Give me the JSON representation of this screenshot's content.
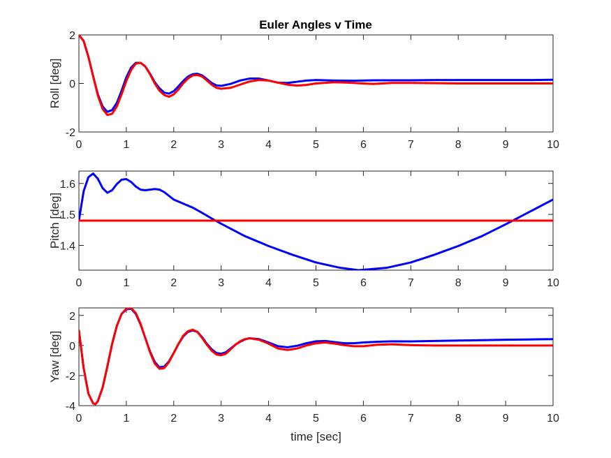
{
  "figure": {
    "title": "Euler Angles v Time"
  },
  "colors": {
    "series_blue": "#0000FF",
    "series_red": "#FF0000",
    "axes": "#262626"
  },
  "chart_data": [
    {
      "type": "line",
      "id": "roll",
      "title": "Euler Angles v Time",
      "xlabel": "",
      "ylabel": "Roll [deg]",
      "xlim": [
        0,
        10
      ],
      "ylim": [
        -2,
        2
      ],
      "xticks": [
        0,
        1,
        2,
        3,
        4,
        5,
        6,
        7,
        8,
        9,
        10
      ],
      "yticks": [
        -2,
        0,
        2
      ],
      "grid": false,
      "series": [
        {
          "color": "#0000FF",
          "x": [
            0,
            0.1,
            0.2,
            0.3,
            0.4,
            0.5,
            0.6,
            0.7,
            0.8,
            0.9,
            1.0,
            1.1,
            1.2,
            1.3,
            1.4,
            1.5,
            1.6,
            1.7,
            1.8,
            1.9,
            2.0,
            2.1,
            2.2,
            2.3,
            2.4,
            2.5,
            2.6,
            2.7,
            2.8,
            2.9,
            3.0,
            3.2,
            3.4,
            3.6,
            3.8,
            4.0,
            4.2,
            4.4,
            4.6,
            4.8,
            5.0,
            5.4,
            5.8,
            6.2,
            6.6,
            7.0,
            7.5,
            8.0,
            8.5,
            9.0,
            9.5,
            10.0
          ],
          "y": [
            2.0,
            1.75,
            1.1,
            0.3,
            -0.45,
            -0.95,
            -1.17,
            -1.1,
            -0.8,
            -0.3,
            0.25,
            0.65,
            0.85,
            0.85,
            0.7,
            0.4,
            0.05,
            -0.2,
            -0.38,
            -0.42,
            -0.32,
            -0.12,
            0.1,
            0.28,
            0.38,
            0.4,
            0.33,
            0.18,
            0.02,
            -0.08,
            -0.1,
            -0.02,
            0.12,
            0.2,
            0.2,
            0.12,
            0.03,
            0.02,
            0.07,
            0.12,
            0.14,
            0.12,
            0.11,
            0.13,
            0.13,
            0.13,
            0.14,
            0.14,
            0.14,
            0.14,
            0.14,
            0.15
          ]
        },
        {
          "color": "#FF0000",
          "x": [
            0,
            0.1,
            0.2,
            0.3,
            0.4,
            0.5,
            0.6,
            0.7,
            0.8,
            0.9,
            1.0,
            1.1,
            1.2,
            1.3,
            1.4,
            1.5,
            1.6,
            1.7,
            1.8,
            1.9,
            2.0,
            2.1,
            2.2,
            2.3,
            2.4,
            2.5,
            2.6,
            2.7,
            2.8,
            2.9,
            3.0,
            3.2,
            3.4,
            3.6,
            3.8,
            4.0,
            4.2,
            4.4,
            4.6,
            4.8,
            5.0,
            5.4,
            5.8,
            6.2,
            6.6,
            7.0,
            7.5,
            8.0,
            8.5,
            9.0,
            9.5,
            10.0
          ],
          "y": [
            2.0,
            1.75,
            1.1,
            0.3,
            -0.5,
            -1.05,
            -1.3,
            -1.25,
            -0.95,
            -0.45,
            0.1,
            0.55,
            0.82,
            0.85,
            0.7,
            0.38,
            0.0,
            -0.3,
            -0.48,
            -0.55,
            -0.45,
            -0.25,
            0.0,
            0.2,
            0.33,
            0.35,
            0.28,
            0.12,
            -0.05,
            -0.18,
            -0.22,
            -0.18,
            -0.05,
            0.08,
            0.14,
            0.12,
            0.03,
            -0.05,
            -0.09,
            -0.06,
            0.0,
            0.05,
            0.02,
            -0.02,
            0.02,
            0.02,
            0.01,
            0.0,
            0.0,
            0.0,
            0.0,
            0.0
          ]
        }
      ]
    },
    {
      "type": "line",
      "id": "pitch",
      "xlabel": "",
      "ylabel": "Pitch [deg]",
      "xlim": [
        0,
        10
      ],
      "ylim": [
        1.32,
        1.64
      ],
      "xticks": [
        0,
        1,
        2,
        3,
        4,
        5,
        6,
        7,
        8,
        9,
        10
      ],
      "yticks": [
        1.4,
        1.5,
        1.6
      ],
      "grid": false,
      "series": [
        {
          "color": "#0000FF",
          "x": [
            0,
            0.1,
            0.2,
            0.3,
            0.4,
            0.5,
            0.6,
            0.7,
            0.8,
            0.9,
            1.0,
            1.1,
            1.2,
            1.3,
            1.4,
            1.5,
            1.6,
            1.7,
            1.8,
            1.9,
            2.0,
            2.2,
            2.4,
            2.6,
            2.8,
            3.0,
            3.5,
            4.0,
            4.5,
            5.0,
            5.5,
            5.9,
            6.5,
            7.0,
            7.5,
            8.0,
            8.5,
            9.0,
            9.5,
            10.0
          ],
          "y": [
            1.48,
            1.575,
            1.62,
            1.632,
            1.615,
            1.585,
            1.57,
            1.578,
            1.598,
            1.612,
            1.614,
            1.605,
            1.59,
            1.58,
            1.578,
            1.58,
            1.582,
            1.58,
            1.572,
            1.56,
            1.548,
            1.535,
            1.522,
            1.505,
            1.487,
            1.47,
            1.43,
            1.398,
            1.37,
            1.345,
            1.328,
            1.32,
            1.328,
            1.345,
            1.37,
            1.398,
            1.43,
            1.468,
            1.508,
            1.548
          ]
        },
        {
          "color": "#FF0000",
          "x": [
            0,
            10
          ],
          "y": [
            1.48,
            1.48
          ]
        }
      ]
    },
    {
      "type": "line",
      "id": "yaw",
      "xlabel": "time [sec]",
      "ylabel": "Yaw [deg]",
      "xlim": [
        0,
        10
      ],
      "ylim": [
        -4,
        2.5
      ],
      "xticks": [
        0,
        1,
        2,
        3,
        4,
        5,
        6,
        7,
        8,
        9,
        10
      ],
      "yticks": [
        -4,
        -2,
        0,
        2
      ],
      "grid": false,
      "series": [
        {
          "color": "#0000FF",
          "x": [
            0,
            0.1,
            0.2,
            0.3,
            0.35,
            0.4,
            0.5,
            0.6,
            0.7,
            0.8,
            0.9,
            1.0,
            1.1,
            1.2,
            1.3,
            1.4,
            1.5,
            1.6,
            1.7,
            1.8,
            1.9,
            2.0,
            2.1,
            2.2,
            2.3,
            2.4,
            2.5,
            2.6,
            2.7,
            2.8,
            2.9,
            3.0,
            3.1,
            3.2,
            3.3,
            3.4,
            3.5,
            3.6,
            3.8,
            4.0,
            4.2,
            4.4,
            4.6,
            4.8,
            5.0,
            5.2,
            5.4,
            5.6,
            5.8,
            6.0,
            6.3,
            6.6,
            7.0,
            7.5,
            8.0,
            8.5,
            9.0,
            9.5,
            10.0
          ],
          "y": [
            1.0,
            -1.5,
            -3.2,
            -3.85,
            -3.9,
            -3.7,
            -2.8,
            -1.4,
            0.1,
            1.3,
            2.1,
            2.4,
            2.45,
            2.1,
            1.4,
            0.5,
            -0.4,
            -1.1,
            -1.45,
            -1.4,
            -1.05,
            -0.5,
            0.1,
            0.6,
            0.9,
            1.0,
            0.9,
            0.55,
            0.1,
            -0.25,
            -0.5,
            -0.55,
            -0.45,
            -0.2,
            0.05,
            0.25,
            0.4,
            0.48,
            0.42,
            0.2,
            -0.05,
            -0.12,
            -0.02,
            0.15,
            0.28,
            0.3,
            0.22,
            0.15,
            0.15,
            0.2,
            0.25,
            0.28,
            0.27,
            0.3,
            0.33,
            0.35,
            0.38,
            0.4,
            0.42
          ]
        },
        {
          "color": "#FF0000",
          "x": [
            0,
            0.1,
            0.2,
            0.3,
            0.35,
            0.4,
            0.5,
            0.6,
            0.7,
            0.8,
            0.9,
            1.0,
            1.1,
            1.2,
            1.3,
            1.4,
            1.5,
            1.6,
            1.7,
            1.8,
            1.9,
            2.0,
            2.1,
            2.2,
            2.3,
            2.4,
            2.5,
            2.6,
            2.7,
            2.8,
            2.9,
            3.0,
            3.1,
            3.2,
            3.3,
            3.4,
            3.5,
            3.6,
            3.8,
            4.0,
            4.2,
            4.4,
            4.6,
            4.8,
            5.0,
            5.2,
            5.4,
            5.6,
            5.8,
            6.0,
            6.3,
            6.6,
            7.0,
            7.5,
            8.0,
            8.5,
            9.0,
            9.5,
            10.0
          ],
          "y": [
            1.0,
            -1.5,
            -3.2,
            -3.85,
            -3.9,
            -3.7,
            -2.8,
            -1.4,
            0.1,
            1.3,
            2.1,
            2.45,
            2.5,
            2.15,
            1.45,
            0.5,
            -0.45,
            -1.2,
            -1.55,
            -1.5,
            -1.1,
            -0.5,
            0.1,
            0.65,
            0.95,
            1.05,
            0.9,
            0.5,
            0.05,
            -0.35,
            -0.6,
            -0.65,
            -0.55,
            -0.25,
            0.05,
            0.28,
            0.42,
            0.48,
            0.38,
            0.12,
            -0.2,
            -0.3,
            -0.2,
            0.0,
            0.15,
            0.2,
            0.12,
            0.02,
            -0.05,
            -0.05,
            0.05,
            0.08,
            0.02,
            0.0,
            0.0,
            0.0,
            0.0,
            0.0,
            0.0
          ]
        }
      ]
    }
  ]
}
